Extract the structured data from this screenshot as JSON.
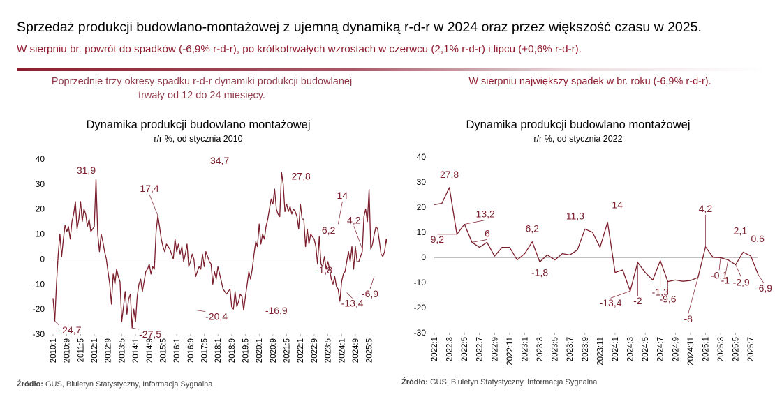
{
  "header": {
    "title": "Sprzedaż produkcji budowlano-montażowej z ujemną dynamiką r-d-r w 2024 oraz przez większość czasu w 2025.",
    "subtitle": "W sierpniu br. powrót do spadków (-6,9% r-d-r), po krótkotrwałych wzrostach w czerwcu (2,1% r-d-r) i lipcu (+0,6% r-d-r).",
    "note_left": "Poprzednie trzy okresy spadku r-d-r dynamiki produkcji budowlanej trwały od 12 do 24 miesięcy.",
    "note_right": "W sierpniu największy spadek w br. roku (-6,9% r-d-r)."
  },
  "colors": {
    "accent": "#8e1c2f",
    "line": "#7a1e2c",
    "zero": "#555555"
  },
  "source_left": {
    "label": "Źródło:",
    "text": " GUS, Biuletyn Statystyczny, Informacja Sygnalna"
  },
  "source_right": {
    "label": "Źródło:",
    "text": " GUS, Biuletyn Statystyczny, Informacja Sygnalna"
  },
  "chart_data": [
    {
      "type": "line",
      "title": "Dynamika produkcji budowlano montażowej",
      "subtitle": "r/r %, od stycznia 2010",
      "ylim": [
        -30,
        40
      ],
      "yticks": [
        -30,
        -20,
        -10,
        0,
        10,
        20,
        30,
        40
      ],
      "xtick_labels": [
        "2010:1",
        "2010:9",
        "2011:5",
        "2012:1",
        "2012:9",
        "2013:5",
        "2014:1",
        "2014:9",
        "2015:5",
        "2016:1",
        "2016:9",
        "2017:5",
        "2018:1",
        "2018:9",
        "2019:5",
        "2020:1",
        "2020:9",
        "2021:5",
        "2022:1",
        "2022:9",
        "2023:5",
        "2024:1",
        "2024:9",
        "2025:5"
      ],
      "x_start": "2010:1",
      "x_end": "2025:8",
      "grid": false,
      "series": [
        {
          "values": [
            -15.6,
            -24.7,
            -10,
            2,
            10,
            1,
            8,
            13.5,
            11,
            13,
            8,
            15,
            18,
            23,
            12,
            16,
            23,
            15,
            20,
            18,
            13,
            16,
            11,
            12,
            13,
            31.9,
            10,
            3,
            10,
            7,
            3,
            0,
            -5,
            -10,
            -18,
            -6,
            -10,
            -4,
            -7,
            -9,
            -25,
            -19,
            -13,
            -22,
            -16,
            -14,
            -27.5,
            -20,
            -25,
            -15,
            -10,
            -8,
            -13,
            -9,
            -5,
            -4,
            -2,
            -6,
            -3,
            -4,
            11,
            17.4,
            13,
            8,
            5,
            3,
            6,
            5,
            4,
            2,
            0,
            8,
            3,
            6,
            2,
            5,
            -1,
            2,
            6,
            -3,
            -1,
            2,
            0,
            -7,
            -5,
            -3,
            -4,
            2,
            -3,
            3,
            1,
            -1,
            -2,
            -10,
            -5,
            -8,
            -3,
            -6,
            -9,
            -12,
            -13,
            -14,
            -13,
            -12,
            -19,
            -20,
            -13,
            -19,
            -17,
            -14,
            -15,
            -20.4,
            -15,
            -10,
            -5,
            -8,
            -4,
            2,
            7,
            5,
            14,
            6,
            10,
            8,
            13,
            16,
            20,
            24,
            22,
            28,
            20,
            18,
            17,
            34.7,
            30,
            19,
            22,
            19,
            21,
            18,
            20,
            19,
            17,
            12,
            22,
            16,
            16,
            5,
            12,
            6,
            10,
            9,
            8,
            5,
            -2,
            9,
            -2,
            -3,
            1,
            -4,
            -1,
            -4,
            -8,
            -10,
            -7,
            -11,
            -12,
            -16.9,
            -9,
            -6,
            -5,
            -1,
            3,
            -1,
            5,
            -4,
            5,
            -1,
            -1,
            1,
            3,
            17,
            20,
            15,
            27.8,
            4,
            6,
            10,
            13,
            12,
            7,
            2,
            1,
            3,
            8,
            4,
            6.2,
            4,
            2,
            -1.8,
            1,
            3,
            0,
            -1,
            0,
            4,
            5,
            7,
            10,
            9,
            12,
            14,
            7,
            1,
            -3,
            -13.4,
            -7,
            -9,
            -5,
            -8,
            -4,
            -9,
            -10,
            -9,
            -9,
            -8,
            -5,
            4.2,
            0,
            -1,
            -5,
            -3,
            -1,
            -3,
            -4,
            -1,
            2.1,
            0.6,
            -6.9
          ]
        }
      ],
      "annotations": [
        {
          "x": "2010:2",
          "value": -24.7,
          "label": "-24,7"
        },
        {
          "x": "2012:2",
          "value": 31.9,
          "label": "31,9"
        },
        {
          "x": "2013:11",
          "value": -27.5,
          "label": "-27,5"
        },
        {
          "x": "2015:2",
          "value": 17.4,
          "label": "17,4"
        },
        {
          "x": "2016:12",
          "value": -20.4,
          "label": "-20,4"
        },
        {
          "x": "2018:2",
          "value": 34.7,
          "label": "34,7"
        },
        {
          "x": "2020:11",
          "value": -16.9,
          "label": "-16,9"
        },
        {
          "x": "2022:3",
          "value": 27.8,
          "label": "27,8"
        },
        {
          "x": "2023:3",
          "value": 6.2,
          "label": "6,2"
        },
        {
          "x": "2023:6",
          "value": -1.8,
          "label": "-1,8"
        },
        {
          "x": "2023:11",
          "value": 14,
          "label": "14"
        },
        {
          "x": "2024:4",
          "value": -13.4,
          "label": "-13,4"
        },
        {
          "x": "2025:1",
          "value": 4.2,
          "label": "4,2"
        },
        {
          "x": "2025:8",
          "value": -6.9,
          "label": "-6,9"
        }
      ]
    },
    {
      "type": "line",
      "title": "Dynamika produkcji budowlano montażowej",
      "subtitle": "r/r %, od stycznia 2022",
      "ylim": [
        -30,
        40
      ],
      "yticks": [
        -30,
        -20,
        -10,
        0,
        10,
        20,
        30,
        40
      ],
      "xtick_labels": [
        "2022:1",
        "2022:3",
        "2022:5",
        "2022:7",
        "2022:9",
        "2022:11",
        "2023:1",
        "2023:3",
        "2023:5",
        "2023:7",
        "2023:9",
        "2023:11",
        "2024:1",
        "2024:3",
        "2024:5",
        "2024:7",
        "2024:9",
        "2024:11",
        "2025:1",
        "2025:3",
        "2025:5",
        "2025:7"
      ],
      "x_start": "2022:1",
      "x_end": "2025:8",
      "grid": false,
      "series": [
        {
          "values": [
            21,
            21.5,
            27.8,
            9.2,
            13.2,
            6,
            4,
            6,
            0.5,
            4,
            4,
            -1,
            1.5,
            6.2,
            -1.8,
            1,
            -1,
            1.5,
            1,
            3,
            11.3,
            10,
            4,
            14,
            -6,
            -5,
            -13.4,
            -2,
            -6,
            -9,
            -1.3,
            -9.6,
            -9,
            -9.5,
            -9.2,
            -8,
            4.2,
            0,
            -0.1,
            -1,
            -2.9,
            2.1,
            0.6,
            -6.9
          ]
        }
      ],
      "annotations": [
        {
          "x": "2022:3",
          "value": 27.8,
          "label": "27,8"
        },
        {
          "x": "2022:4",
          "value": 9.2,
          "label": "9,2"
        },
        {
          "x": "2022:5",
          "value": 13.2,
          "label": "13,2"
        },
        {
          "x": "2022:6",
          "value": 6,
          "label": "6"
        },
        {
          "x": "2023:2",
          "value": 6.2,
          "label": "6,2"
        },
        {
          "x": "2023:3",
          "value": -1.8,
          "label": "-1,8"
        },
        {
          "x": "2023:9",
          "value": 11.3,
          "label": "11,3"
        },
        {
          "x": "2023:12",
          "value": 14,
          "label": "14"
        },
        {
          "x": "2024:3",
          "value": -13.4,
          "label": "-13,4"
        },
        {
          "x": "2024:4",
          "value": -2,
          "label": "-2"
        },
        {
          "x": "2024:7",
          "value": -1.3,
          "label": "-1,3"
        },
        {
          "x": "2024:8",
          "value": -9.6,
          "label": "-9,6"
        },
        {
          "x": "2024:12",
          "value": -8,
          "label": "-8"
        },
        {
          "x": "2025:1",
          "value": 4.2,
          "label": "4,2"
        },
        {
          "x": "2025:3",
          "value": -0.1,
          "label": "-0,1"
        },
        {
          "x": "2025:4",
          "value": -1,
          "label": "-1"
        },
        {
          "x": "2025:5",
          "value": -2.9,
          "label": "-2,9"
        },
        {
          "x": "2025:6",
          "value": 2.1,
          "label": "2,1"
        },
        {
          "x": "2025:7",
          "value": 0.6,
          "label": "0,6"
        },
        {
          "x": "2025:8",
          "value": -6.9,
          "label": "-6,9"
        }
      ]
    }
  ]
}
